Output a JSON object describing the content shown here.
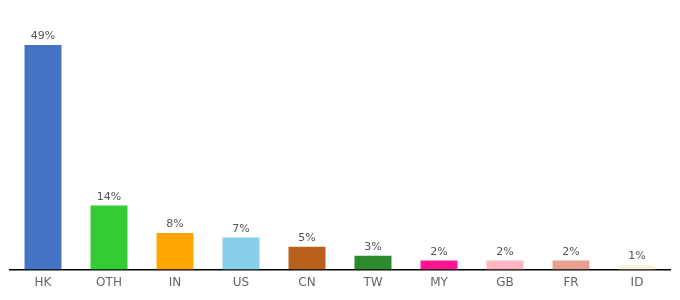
{
  "chart_data": {
    "type": "bar",
    "categories": [
      "HK",
      "OTH",
      "IN",
      "US",
      "CN",
      "TW",
      "MY",
      "GB",
      "FR",
      "ID"
    ],
    "values": [
      49,
      14,
      8,
      7,
      5,
      3,
      2,
      2,
      2,
      1
    ],
    "value_labels": [
      "49%",
      "14%",
      "8%",
      "7%",
      "5%",
      "3%",
      "2%",
      "2%",
      "2%",
      "1%"
    ],
    "colors": [
      "#4472c4",
      "#33cc33",
      "#ffa500",
      "#87ceeb",
      "#b8601c",
      "#2d8a2d",
      "#ff1493",
      "#ffb6c1",
      "#e8a090",
      "#f5f5dc"
    ],
    "ylim": [
      0,
      54
    ],
    "data_labels": true,
    "tick_labels": "x",
    "grid": false
  }
}
